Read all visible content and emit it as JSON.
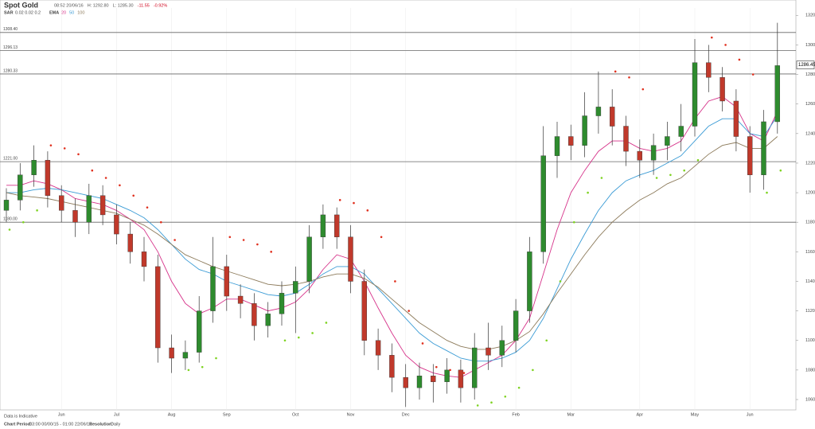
{
  "chart_data": {
    "type": "candlestick",
    "title": "Spot Gold",
    "info": [
      "08:52 20/06/16",
      "H: 1292.80",
      "L: 1285.30",
      "-11.55",
      "-0.92%"
    ],
    "info_colors": [
      "#555555",
      "#555555",
      "#555555",
      "#d0021b",
      "#d0021b"
    ],
    "categories": [
      null,
      null,
      null,
      null,
      "Jun",
      null,
      null,
      null,
      "Jul",
      null,
      null,
      null,
      "Aug",
      null,
      null,
      null,
      "Sep",
      null,
      null,
      null,
      null,
      "Oct",
      null,
      null,
      null,
      "Nov",
      null,
      null,
      null,
      "Dec",
      null,
      null,
      null,
      null,
      null,
      null,
      null,
      "Feb",
      null,
      null,
      null,
      "Mar",
      null,
      null,
      null,
      null,
      "Apr",
      null,
      null,
      null,
      "May",
      null,
      null,
      null,
      "Jun",
      null,
      null
    ],
    "ohlc": {
      "up_color": "#2e8b2e",
      "down_color": "#c0392b",
      "open": [
        1188,
        1195,
        1212,
        1222,
        1198,
        1188,
        1180,
        1198,
        1185,
        1172,
        1160,
        1150,
        1095,
        1088,
        1092,
        1120,
        1150,
        1130,
        1125,
        1110,
        1118,
        1132,
        1140,
        1170,
        1185,
        1170,
        1140,
        1100,
        1090,
        1075,
        1068,
        1076,
        1072,
        1080,
        1068,
        1095,
        1090,
        1100,
        1120,
        1160,
        1225,
        1238,
        1232,
        1252,
        1258,
        1245,
        1228,
        1222,
        1232,
        1238,
        1245,
        1288,
        1278,
        1262,
        1238,
        1212,
        1248
      ],
      "high": [
        1203,
        1220,
        1232,
        1228,
        1205,
        1196,
        1206,
        1205,
        1192,
        1180,
        1170,
        1158,
        1104,
        1100,
        1130,
        1170,
        1158,
        1138,
        1132,
        1126,
        1140,
        1150,
        1178,
        1192,
        1190,
        1178,
        1148,
        1108,
        1098,
        1084,
        1085,
        1084,
        1088,
        1087,
        1105,
        1112,
        1110,
        1128,
        1170,
        1245,
        1248,
        1246,
        1268,
        1282,
        1270,
        1252,
        1236,
        1240,
        1248,
        1260,
        1304,
        1300,
        1285,
        1270,
        1245,
        1256,
        1315
      ],
      "low": [
        1180,
        1188,
        1204,
        1190,
        1180,
        1170,
        1172,
        1178,
        1165,
        1152,
        1140,
        1085,
        1078,
        1080,
        1085,
        1112,
        1120,
        1115,
        1100,
        1102,
        1110,
        1105,
        1132,
        1162,
        1162,
        1132,
        1090,
        1080,
        1065,
        1055,
        1060,
        1058,
        1064,
        1058,
        1060,
        1080,
        1082,
        1092,
        1112,
        1152,
        1210,
        1222,
        1224,
        1240,
        1232,
        1218,
        1210,
        1212,
        1222,
        1228,
        1238,
        1268,
        1255,
        1228,
        1200,
        1202,
        1240
      ],
      "close": [
        1195,
        1212,
        1222,
        1198,
        1188,
        1180,
        1198,
        1185,
        1172,
        1160,
        1150,
        1095,
        1088,
        1092,
        1120,
        1150,
        1130,
        1125,
        1110,
        1118,
        1132,
        1140,
        1170,
        1185,
        1170,
        1140,
        1100,
        1090,
        1075,
        1068,
        1076,
        1072,
        1080,
        1068,
        1095,
        1090,
        1100,
        1120,
        1160,
        1225,
        1238,
        1232,
        1252,
        1258,
        1245,
        1228,
        1222,
        1232,
        1238,
        1245,
        1288,
        1278,
        1262,
        1238,
        1212,
        1248,
        1286
      ]
    },
    "ema": {
      "name": "EMA",
      "series": [
        {
          "name": "20",
          "color": "#d6338a",
          "values": [
            1205,
            1205,
            1208,
            1206,
            1202,
            1196,
            1194,
            1192,
            1188,
            1182,
            1175,
            1160,
            1140,
            1125,
            1118,
            1122,
            1128,
            1128,
            1124,
            1120,
            1122,
            1126,
            1135,
            1148,
            1158,
            1155,
            1140,
            1122,
            1105,
            1090,
            1082,
            1078,
            1076,
            1075,
            1080,
            1085,
            1090,
            1100,
            1115,
            1145,
            1175,
            1200,
            1215,
            1228,
            1235,
            1235,
            1230,
            1228,
            1230,
            1235,
            1250,
            1262,
            1265,
            1258,
            1240,
            1235,
            1255
          ]
        },
        {
          "name": "50",
          "color": "#3a9bd5",
          "values": [
            1200,
            1200,
            1202,
            1203,
            1202,
            1200,
            1198,
            1196,
            1192,
            1188,
            1183,
            1175,
            1165,
            1155,
            1148,
            1145,
            1140,
            1137,
            1134,
            1131,
            1130,
            1132,
            1138,
            1145,
            1150,
            1150,
            1145,
            1135,
            1125,
            1115,
            1105,
            1098,
            1093,
            1088,
            1086,
            1086,
            1088,
            1092,
            1100,
            1115,
            1135,
            1155,
            1172,
            1188,
            1200,
            1208,
            1212,
            1215,
            1220,
            1225,
            1235,
            1245,
            1250,
            1250,
            1240,
            1238,
            1252
          ]
        },
        {
          "name": "100",
          "color": "#8c7a5a",
          "values": [
            1200,
            1198,
            1197,
            1196,
            1194,
            1192,
            1190,
            1188,
            1186,
            1182,
            1178,
            1172,
            1165,
            1158,
            1154,
            1150,
            1147,
            1144,
            1141,
            1138,
            1137,
            1138,
            1140,
            1143,
            1145,
            1145,
            1142,
            1136,
            1128,
            1120,
            1112,
            1106,
            1100,
            1096,
            1094,
            1094,
            1096,
            1100,
            1106,
            1118,
            1132,
            1145,
            1158,
            1170,
            1180,
            1188,
            1195,
            1200,
            1206,
            1210,
            1218,
            1226,
            1232,
            1234,
            1230,
            1230,
            1238
          ]
        }
      ]
    },
    "sar": {
      "name": "SAR",
      "params": "0.02 0.02 0.2",
      "below_color": "#7ed321",
      "above_color": "#e0301e",
      "values": [
        1175,
        1180,
        1188,
        1232,
        1230,
        1226,
        1215,
        1210,
        1205,
        1198,
        1190,
        1180,
        1168,
        1080,
        1082,
        1088,
        1170,
        1168,
        1165,
        1160,
        1100,
        1102,
        1105,
        1112,
        1195,
        1193,
        1188,
        1170,
        1140,
        1120,
        1098,
        1082,
        1080,
        1078,
        1056,
        1058,
        1062,
        1068,
        1080,
        1100,
        1140,
        1180,
        1200,
        1210,
        1282,
        1278,
        1270,
        1210,
        1212,
        1215,
        1222,
        1305,
        1300,
        1290,
        1280,
        1200,
        1215
      ]
    },
    "levels": [
      {
        "value": 1308.4,
        "label": "1308.40"
      },
      {
        "value": 1296.13,
        "label": "1296.13"
      },
      {
        "value": 1280.33,
        "label": "1280.33"
      },
      {
        "value": 1221,
        "label": "1221.00"
      },
      {
        "value": 1180,
        "label": "1180.00"
      }
    ],
    "last_price": {
      "value": 1286.45,
      "label": "1286.45"
    },
    "ylim": [
      1053,
      1325
    ],
    "yticks": [
      {
        "value": 1060,
        "label": "1060.00"
      },
      {
        "value": 1080,
        "label": "1080.00"
      },
      {
        "value": 1100,
        "label": "1100.00"
      },
      {
        "value": 1120,
        "label": "1120.00"
      },
      {
        "value": 1140,
        "label": "1140.00"
      },
      {
        "value": 1160,
        "label": "1160.00"
      },
      {
        "value": 1180,
        "label": "1180.00"
      },
      {
        "value": 1200,
        "label": "1200.00"
      },
      {
        "value": 1220,
        "label": "1220.00"
      },
      {
        "value": 1240,
        "label": "1240.00"
      },
      {
        "value": 1260,
        "label": "1260.00"
      },
      {
        "value": 1280,
        "label": "1280.00"
      },
      {
        "value": 1300,
        "label": "1300.00"
      },
      {
        "value": 1320,
        "label": "1320.00"
      }
    ],
    "grid": false,
    "note": "Data is Indicative",
    "footer": {
      "period_label": "Chart Period:",
      "period": "03:00 00/00/15 - 01:00 22/06/16",
      "resolution_label": "Resolution:",
      "resolution": "Daily"
    }
  }
}
